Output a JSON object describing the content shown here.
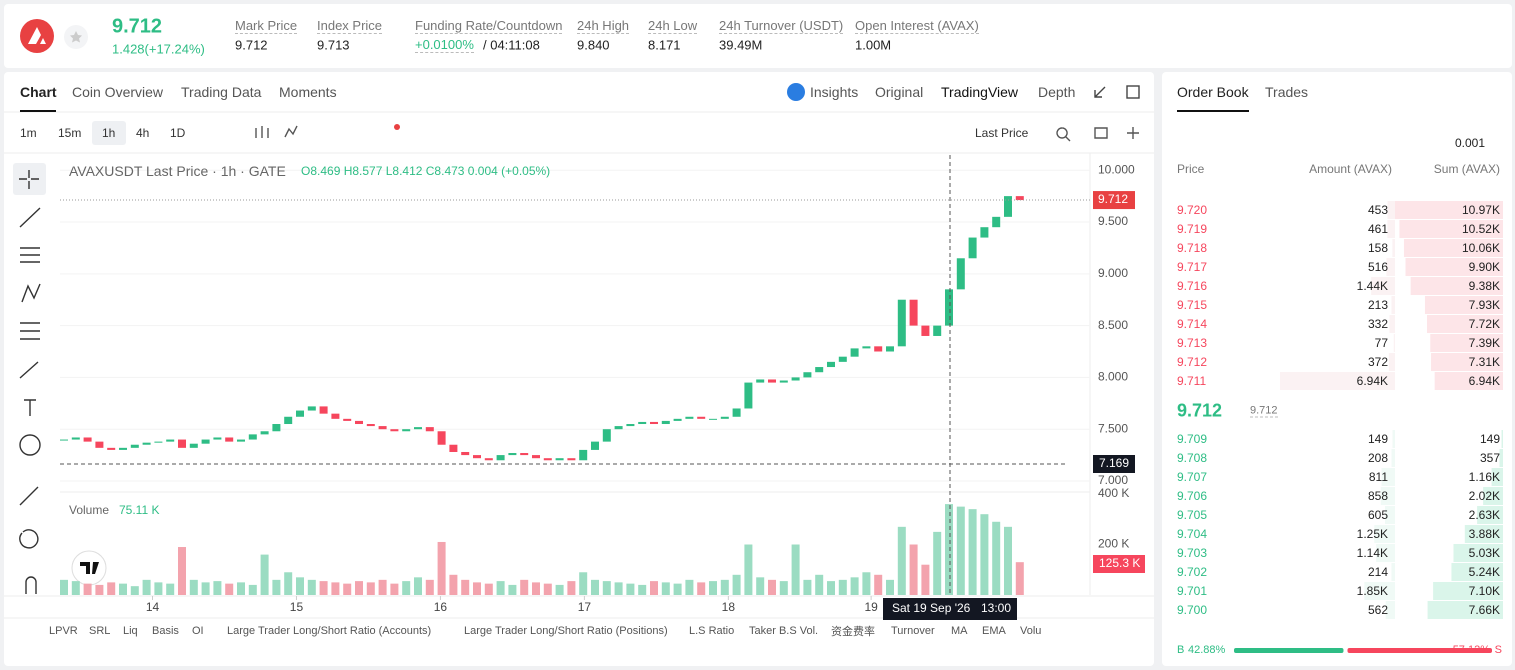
{
  "header": {
    "price": "9.712",
    "change": "1.428(+17.24%)",
    "stats": [
      {
        "label": "Mark Price",
        "value": "9.712"
      },
      {
        "label": "Index Price",
        "value": "9.713"
      },
      {
        "label": "Funding Rate/Countdown",
        "value": "+0.0100%",
        "extra": "/ 04:11:08"
      },
      {
        "label": "24h High",
        "value": "9.840"
      },
      {
        "label": "24h Low",
        "value": "8.171"
      },
      {
        "label": "24h Turnover (USDT)",
        "value": "39.49M"
      },
      {
        "label": "Open Interest (AVAX)",
        "value": "1.00M"
      }
    ]
  },
  "tabs": [
    "Chart",
    "Coin Overview",
    "Trading Data",
    "Moments"
  ],
  "chart_tabs": [
    "Insights",
    "Original",
    "TradingView",
    "Depth"
  ],
  "intervals": [
    "1m",
    "15m",
    "1h",
    "4h",
    "1D"
  ],
  "price_type": "Last Price",
  "chart_data": {
    "type": "candlestick",
    "title": "AVAXUSDT Last Price · 1h · GATE",
    "ohlc": "O8.469 H8.577 L8.412 C8.473 0.004 (+0.05%)",
    "values": [
      7.4,
      7.42,
      7.38,
      7.32,
      7.3,
      7.32,
      7.35,
      7.37,
      7.38,
      7.4,
      7.32,
      7.36,
      7.4,
      7.42,
      7.38,
      7.4,
      7.45,
      7.48,
      7.55,
      7.62,
      7.68,
      7.72,
      7.65,
      7.6,
      7.58,
      7.55,
      7.53,
      7.5,
      7.48,
      7.5,
      7.52,
      7.48,
      7.35,
      7.28,
      7.25,
      7.22,
      7.2,
      7.25,
      7.27,
      7.25,
      7.22,
      7.2,
      7.22,
      7.2,
      7.3,
      7.38,
      7.5,
      7.53,
      7.55,
      7.57,
      7.55,
      7.58,
      7.6,
      7.62,
      7.6,
      7.6,
      7.62,
      7.7,
      7.95,
      7.98,
      7.95,
      7.97,
      8.0,
      8.05,
      8.1,
      8.15,
      8.2,
      8.28,
      8.3,
      8.25,
      8.3,
      8.75,
      8.5,
      8.4,
      8.5,
      8.85,
      9.15,
      9.35,
      9.45,
      9.55,
      9.75,
      9.712
    ],
    "ylim": [
      6.913,
      10.147
    ],
    "yticks": [
      {
        "value": 7,
        "label": "7.000"
      },
      {
        "value": 7.5,
        "label": "7.500"
      },
      {
        "value": 8,
        "label": "8.000"
      },
      {
        "value": 8.5,
        "label": "8.500"
      },
      {
        "value": 9,
        "label": "9.000"
      },
      {
        "value": 9.5,
        "label": "9.500"
      },
      {
        "value": 10,
        "label": "10.000"
      }
    ],
    "xticks": [
      {
        "value": 7.5,
        "label": "14"
      },
      {
        "value": 19.7,
        "label": "15"
      },
      {
        "value": 31.9,
        "label": "16"
      },
      {
        "value": 44.1,
        "label": "17"
      },
      {
        "value": 56.3,
        "label": "18"
      },
      {
        "value": 68.4,
        "label": "19"
      }
    ],
    "volume_title": "Volume",
    "volume_last": "75.11 K",
    "volume": [
      60,
      55,
      45,
      40,
      50,
      45,
      35,
      60,
      50,
      45,
      190,
      60,
      50,
      55,
      45,
      50,
      40,
      160,
      60,
      90,
      70,
      60,
      55,
      50,
      45,
      55,
      50,
      60,
      45,
      55,
      70,
      60,
      210,
      80,
      60,
      50,
      45,
      55,
      40,
      60,
      50,
      45,
      40,
      55,
      90,
      60,
      55,
      50,
      45,
      40,
      55,
      50,
      45,
      60,
      50,
      55,
      60,
      80,
      200,
      70,
      60,
      55,
      200,
      60,
      80,
      55,
      60,
      70,
      90,
      80,
      60,
      270,
      200,
      120,
      250,
      360,
      350,
      340,
      320,
      290,
      270,
      130
    ],
    "volume_ylim": [
      0,
      400
    ],
    "volume_ticks": [
      {
        "value": 200,
        "label": "200 K"
      },
      {
        "value": 400,
        "label": "400 K"
      }
    ],
    "last_price_tag": "9.712",
    "crosshair_price": "7.169",
    "volume_tag": "125.3 K",
    "crosshair_date": "Sat 19 Sep '26",
    "crosshair_time": "13:00"
  },
  "indicators": [
    "LPVR",
    "SRL",
    "Liq",
    "Basis",
    "OI",
    "Large Trader Long/Short Ratio (Accounts)",
    "Large Trader Long/Short Ratio (Positions)",
    "L.S Ratio",
    "Taker B.S Vol.",
    "资金费率",
    "Turnover",
    "MA",
    "EMA",
    "Volu"
  ],
  "order_book": {
    "tabs": [
      "Order Book",
      "Trades"
    ],
    "precision": "0.001",
    "columns": [
      "Price",
      "Amount (AVAX)",
      "Sum (AVAX)"
    ],
    "asks": [
      {
        "price": "9.720",
        "amount": 453,
        "sum": {
          "value": 10970,
          "label": "10.97K"
        }
      },
      {
        "price": "9.719",
        "amount": 461,
        "sum": {
          "value": 10520,
          "label": "10.52K"
        }
      },
      {
        "price": "9.718",
        "amount": 158,
        "sum": {
          "value": 10060,
          "label": "10.06K"
        }
      },
      {
        "price": "9.717",
        "amount": 516,
        "sum": {
          "value": 9900,
          "label": "9.90K"
        }
      },
      {
        "price": "9.716",
        "amount": {
          "value": 1440,
          "label": "1.44K"
        },
        "sum": {
          "value": 9380,
          "label": "9.38K"
        }
      },
      {
        "price": "9.715",
        "amount": 213,
        "sum": {
          "value": 7930,
          "label": "7.93K"
        }
      },
      {
        "price": "9.714",
        "amount": 332,
        "sum": {
          "value": 7720,
          "label": "7.72K"
        }
      },
      {
        "price": "9.713",
        "amount": 77,
        "sum": {
          "value": 7390,
          "label": "7.39K"
        }
      },
      {
        "price": "9.712",
        "amount": 372,
        "sum": {
          "value": 7310,
          "label": "7.31K"
        }
      },
      {
        "price": "9.711",
        "amount": {
          "value": 6940,
          "label": "6.94K"
        },
        "sum": {
          "value": 6940,
          "label": "6.94K"
        }
      }
    ],
    "mid_price": "9.712",
    "mark_price": "9.712",
    "bids": [
      {
        "price": "9.709",
        "amount": 149,
        "sum": 149
      },
      {
        "price": "9.708",
        "amount": 208,
        "sum": 357
      },
      {
        "price": "9.707",
        "amount": 811,
        "sum": {
          "value": 1160,
          "label": "1.16K"
        }
      },
      {
        "price": "9.706",
        "amount": 858,
        "sum": {
          "value": 2020,
          "label": "2.02K"
        }
      },
      {
        "price": "9.705",
        "amount": 605,
        "sum": {
          "value": 2630,
          "label": "2.63K"
        }
      },
      {
        "price": "9.704",
        "amount": {
          "value": 1250,
          "label": "1.25K"
        },
        "sum": {
          "value": 3880,
          "label": "3.88K"
        }
      },
      {
        "price": "9.703",
        "amount": {
          "value": 1140,
          "label": "1.14K"
        },
        "sum": {
          "value": 5030,
          "label": "5.03K"
        }
      },
      {
        "price": "9.702",
        "amount": 214,
        "sum": {
          "value": 5240,
          "label": "5.24K"
        }
      },
      {
        "price": "9.701",
        "amount": {
          "value": 1850,
          "label": "1.85K"
        },
        "sum": {
          "value": 7100,
          "label": "7.10K"
        }
      },
      {
        "price": "9.700",
        "amount": 562,
        "sum": {
          "value": 7660,
          "label": "7.66K"
        }
      }
    ],
    "ratio": {
      "buy_letter": "B",
      "sell_letter": "S",
      "buy": {
        "value": 42.88,
        "label": "42.88%"
      },
      "sell": {
        "value": 57.12,
        "label": "57.12%"
      }
    }
  }
}
